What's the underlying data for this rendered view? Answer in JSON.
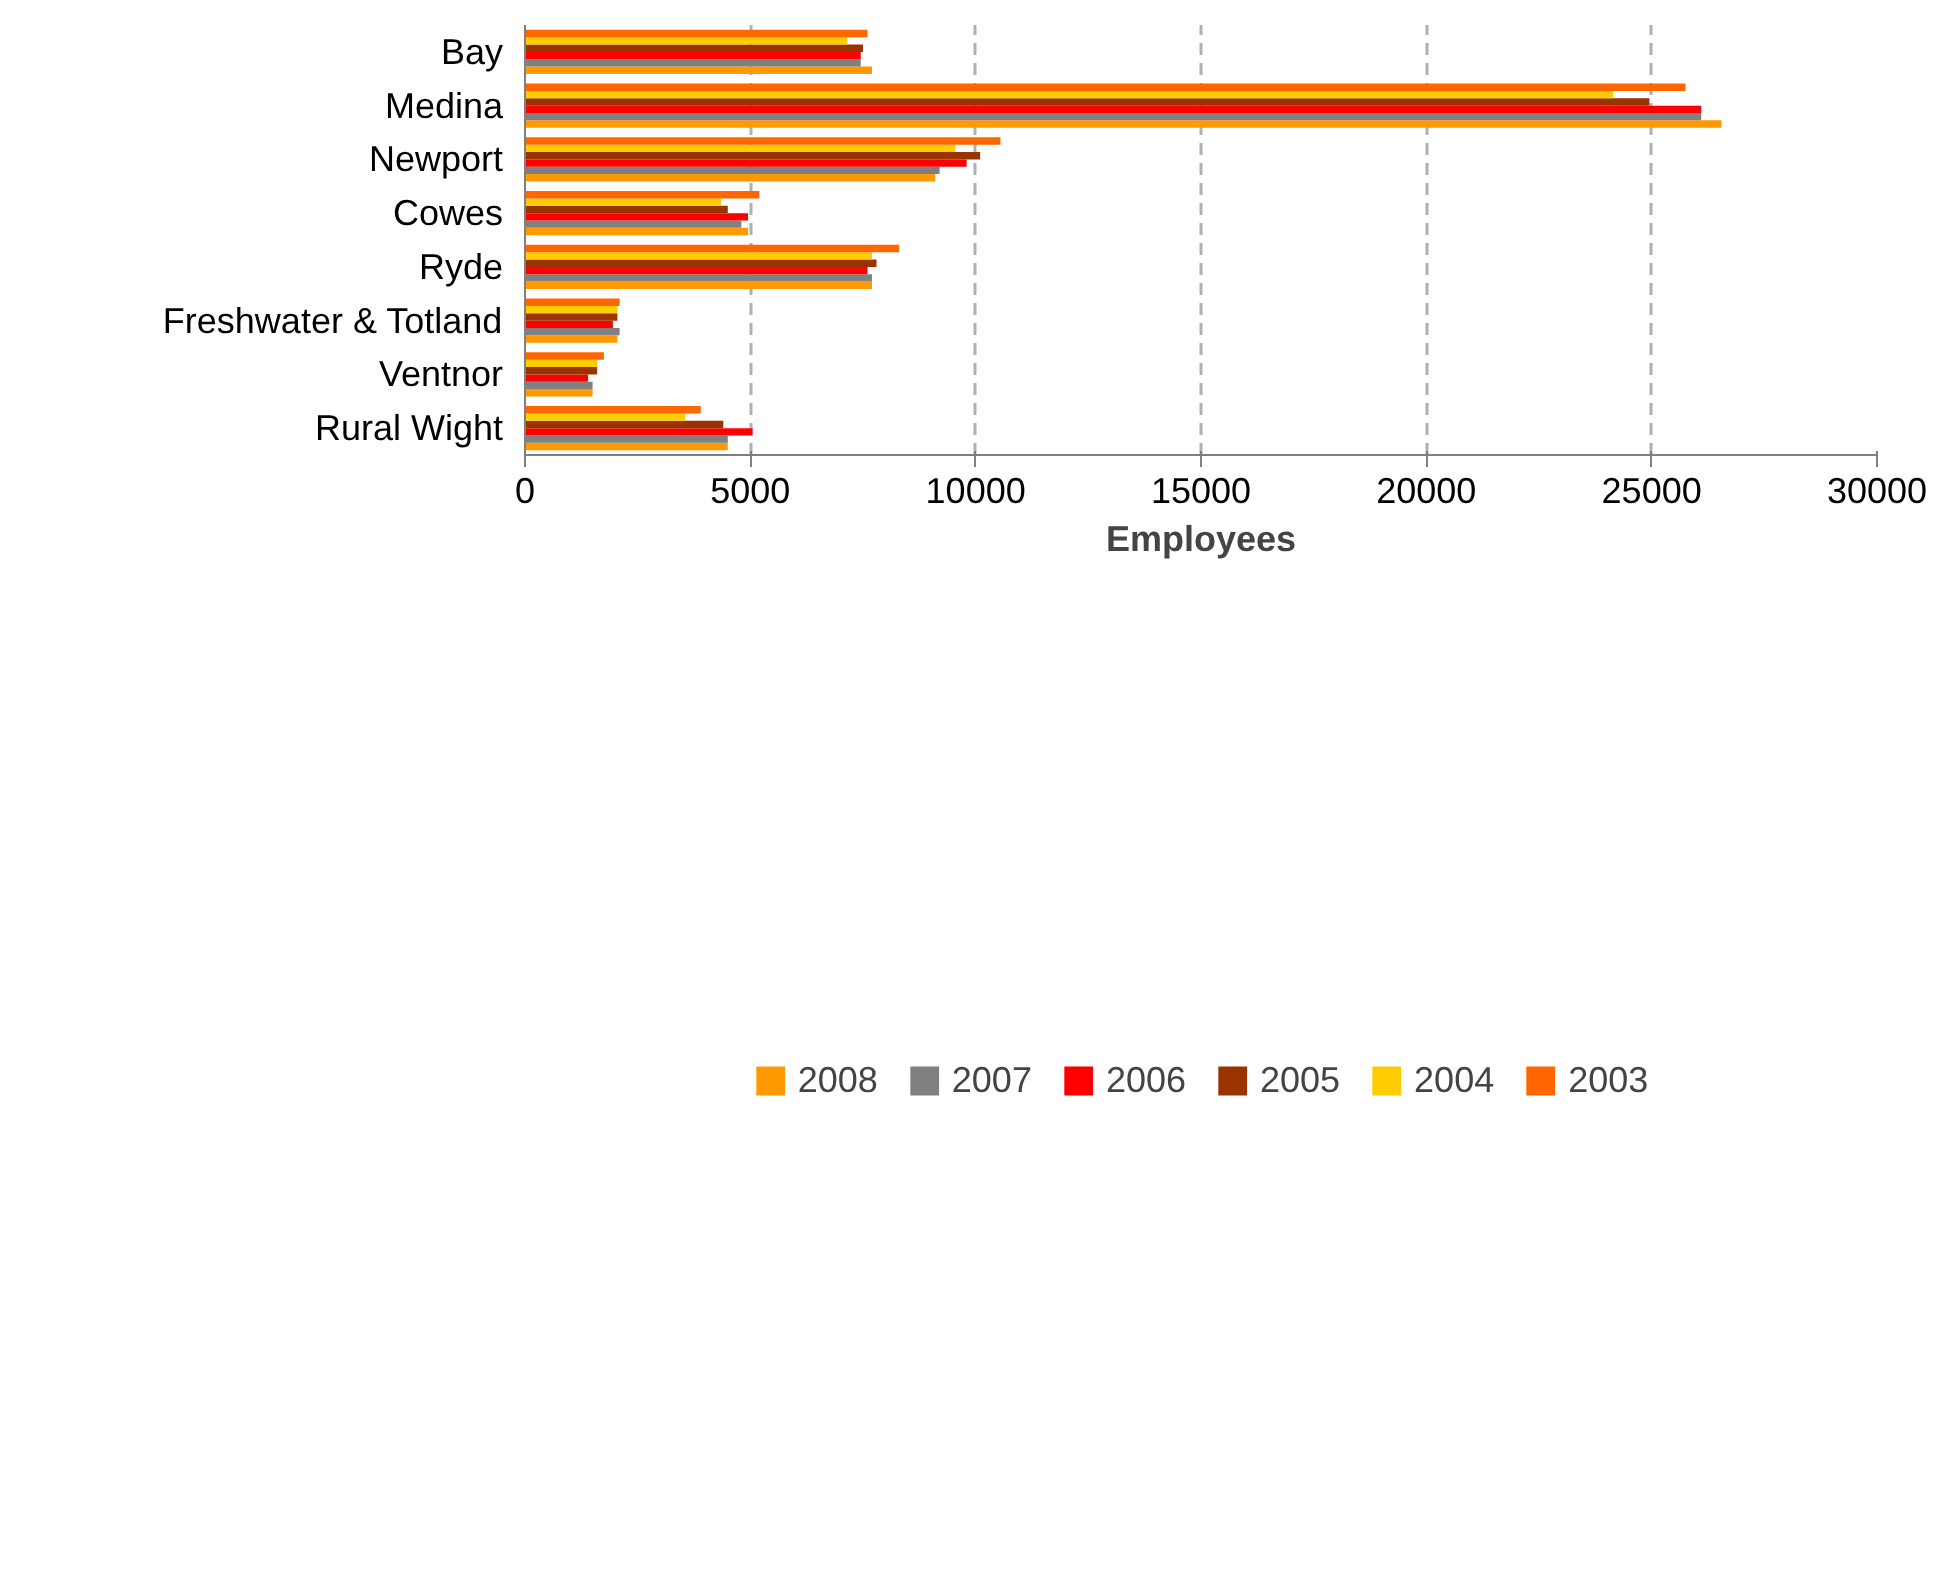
{
  "chart_data": {
    "type": "bar",
    "orientation": "horizontal",
    "xlabel": "Employees",
    "categories": [
      "Bay",
      "Medina",
      "Newport",
      "Cowes",
      "Ryde",
      "Freshwater & Totland",
      "Ventnor",
      "Rural Wight"
    ],
    "series": [
      {
        "name": "2008",
        "color": "#ff9900",
        "values": [
          7700,
          26550,
          9100,
          4950,
          7700,
          2050,
          1500,
          4500
        ]
      },
      {
        "name": "2007",
        "color": "#808080",
        "values": [
          7450,
          26100,
          9200,
          4800,
          7700,
          2100,
          1500,
          4500
        ]
      },
      {
        "name": "2006",
        "color": "#ff0000",
        "values": [
          7450,
          26100,
          9800,
          4950,
          7600,
          1950,
          1400,
          5050
        ]
      },
      {
        "name": "2005",
        "color": "#993300",
        "values": [
          7500,
          24950,
          10100,
          4500,
          7800,
          2050,
          1600,
          4400
        ]
      },
      {
        "name": "2004",
        "color": "#ffcc00",
        "values": [
          7150,
          24150,
          9550,
          4350,
          7700,
          2050,
          1600,
          3550
        ]
      },
      {
        "name": "2003",
        "color": "#ff6600",
        "values": [
          7600,
          25750,
          10550,
          5200,
          8300,
          2100,
          1750,
          3900
        ]
      }
    ],
    "xlim": [
      0,
      30000
    ],
    "xticks": [
      0,
      5000,
      10000,
      15000,
      20000,
      25000,
      30000
    ],
    "grid": "x",
    "legend": "bottom"
  }
}
